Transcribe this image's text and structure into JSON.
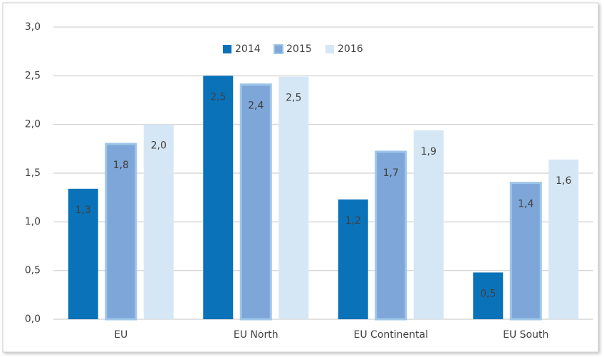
{
  "chart_data": {
    "type": "bar",
    "categories": [
      "EU",
      "EU North",
      "EU Continental",
      "EU South"
    ],
    "series": [
      {
        "name": "2014",
        "color": "#0a72b9",
        "values": [
          1.34,
          2.5,
          1.23,
          0.48
        ],
        "value_labels": [
          "1,3",
          "2,5",
          "1,2",
          "0,5"
        ]
      },
      {
        "name": "2015",
        "color": "#7ea6d9",
        "values": [
          1.8,
          2.41,
          1.72,
          1.4
        ],
        "value_labels": [
          "1,8",
          "2,4",
          "1,7",
          "1,4"
        ]
      },
      {
        "name": "2016",
        "color": "#d5e7f5",
        "values": [
          2.0,
          2.49,
          1.94,
          1.64
        ],
        "value_labels": [
          "2,0",
          "2,5",
          "1,9",
          "1,6"
        ]
      }
    ],
    "ylim": [
      0,
      3
    ],
    "yticks": [
      {
        "value": 0,
        "label": "0,0"
      },
      {
        "value": 0.5,
        "label": "0,5"
      },
      {
        "value": 1,
        "label": "1,0"
      },
      {
        "value": 1.5,
        "label": "1,5"
      },
      {
        "value": 2,
        "label": "2,0"
      },
      {
        "value": 2.5,
        "label": "2,5"
      },
      {
        "value": 3,
        "label": "3,0"
      }
    ],
    "grid": true,
    "legend": "top"
  }
}
